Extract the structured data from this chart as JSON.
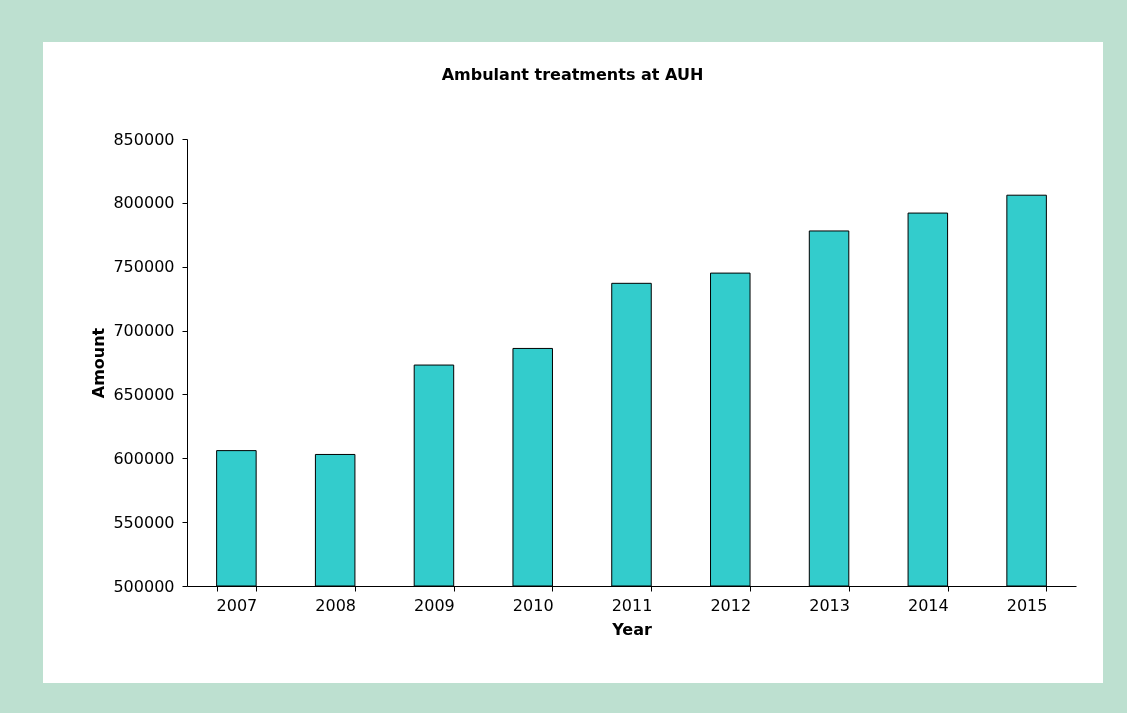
{
  "chart_data": {
    "type": "bar",
    "title": "Ambulant treatments at AUH",
    "xlabel": "Year",
    "ylabel": "Amount",
    "categories": [
      "2007",
      "2008",
      "2009",
      "2010",
      "2011",
      "2012",
      "2013",
      "2014",
      "2015"
    ],
    "values": [
      606000,
      603000,
      673000,
      686000,
      737000,
      745000,
      778000,
      792000,
      806000
    ],
    "color": "#33cccc",
    "ylim": [
      500000,
      850000
    ],
    "yticks": [
      500000,
      550000,
      600000,
      650000,
      700000,
      750000,
      800000,
      850000
    ],
    "grid": false
  }
}
